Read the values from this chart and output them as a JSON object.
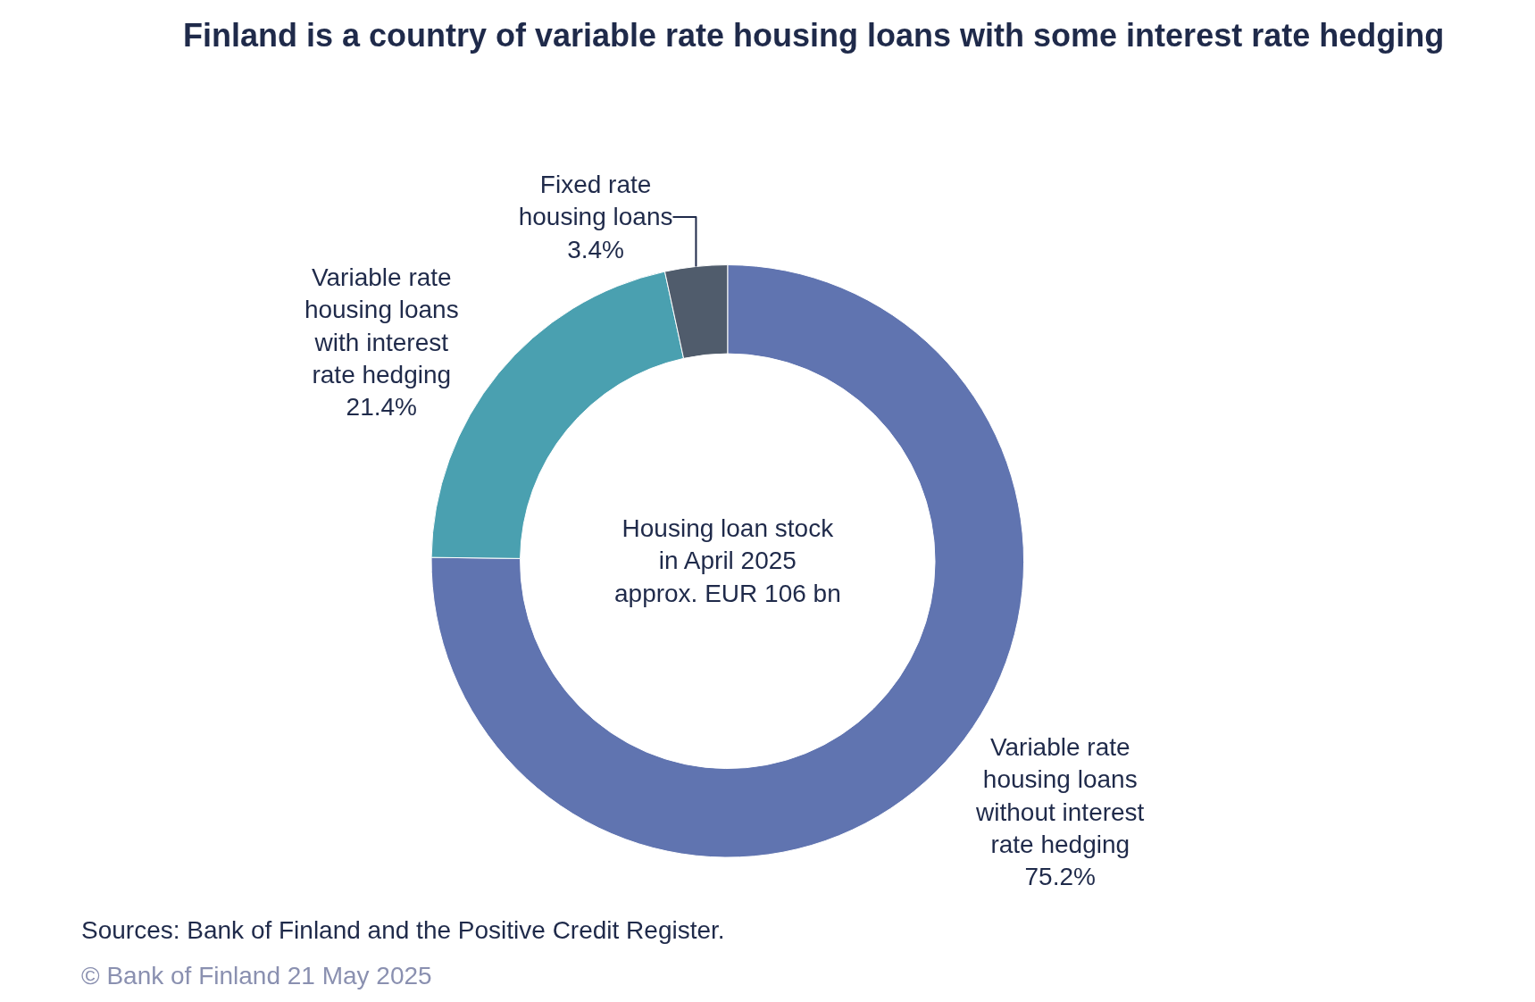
{
  "chart_data": {
    "type": "donut",
    "title": "Finland is a country of variable rate housing loans with some interest rate hedging",
    "categories": [
      "Variable rate housing loans without interest rate hedging",
      "Variable rate housing loans with interest rate hedging",
      "Fixed rate housing loans"
    ],
    "values": [
      75.2,
      21.4,
      3.4
    ],
    "value_labels": [
      "75.2%",
      "21.4%",
      "3.4%"
    ],
    "colors": [
      "#6074b0",
      "#4aa0b0",
      "#505c6c"
    ],
    "annotations": [
      "Housing loan stock in April 2025 approx. EUR 106 bn",
      "Sources: Bank of Finland and the Positive Credit Register.",
      "© Bank of Finland 21 May 2025"
    ],
    "legend": false
  }
}
